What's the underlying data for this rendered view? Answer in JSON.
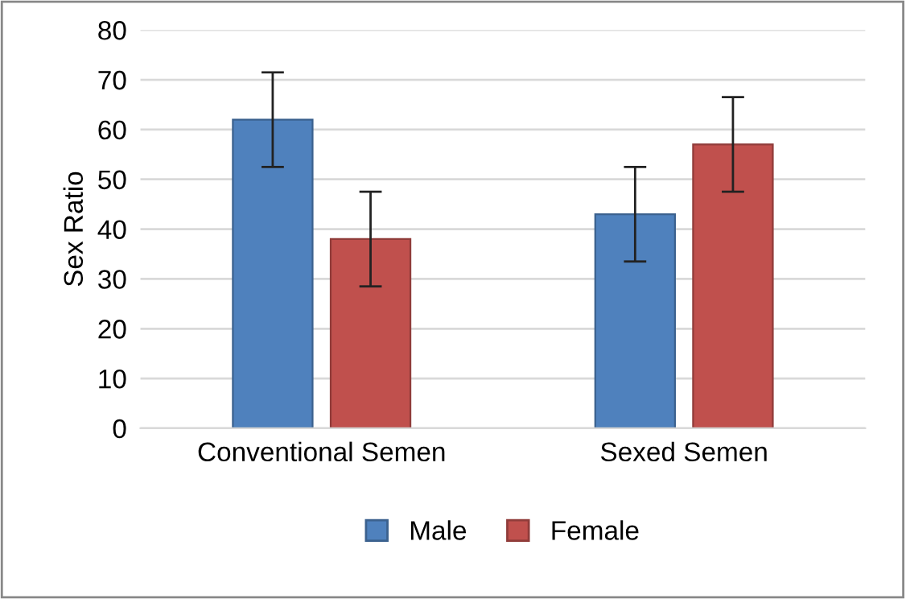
{
  "chart_data": {
    "type": "bar",
    "ylabel": "Sex Ratio",
    "categories": [
      "Conventional Semen",
      "Sexed Semen"
    ],
    "series": [
      {
        "name": "Male",
        "color": "#4f81bd",
        "values": [
          62,
          43
        ],
        "errors": [
          9.5,
          9.5
        ]
      },
      {
        "name": "Female",
        "color": "#c0504d",
        "values": [
          38,
          57
        ],
        "errors": [
          9.5,
          9.5
        ]
      }
    ],
    "ylim": [
      0,
      80
    ],
    "yticks": [
      0,
      10,
      20,
      30,
      40,
      50,
      60,
      70,
      80
    ],
    "grid": "y",
    "legend": "bottom"
  }
}
